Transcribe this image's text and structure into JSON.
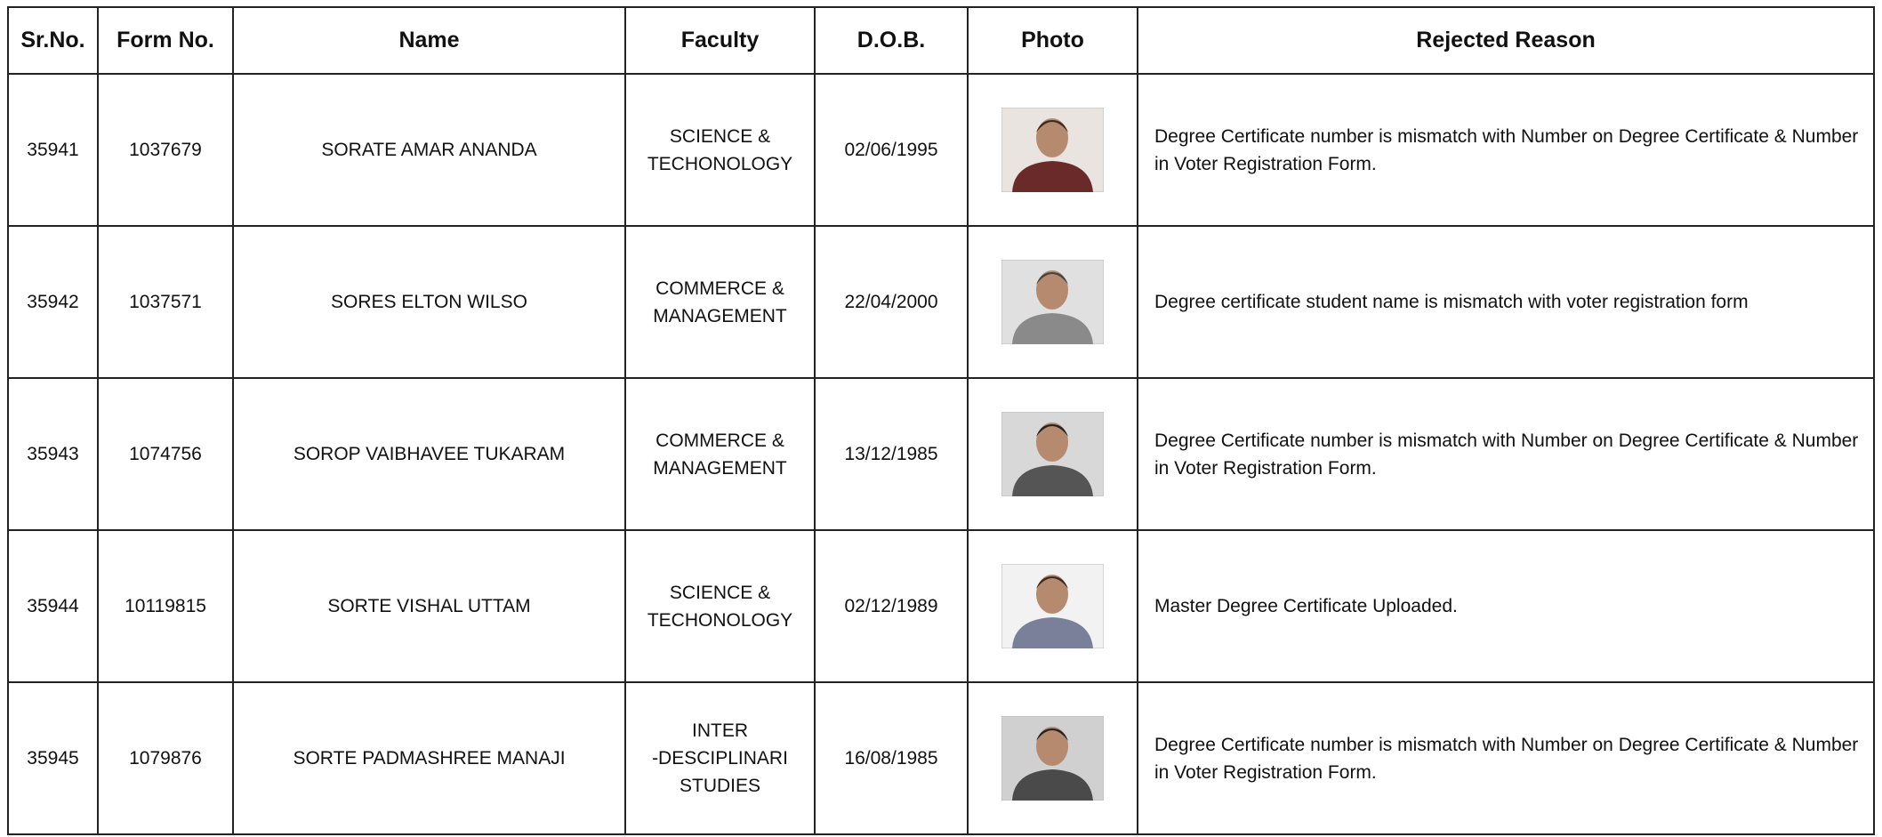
{
  "table": {
    "headers": [
      "Sr.No.",
      "Form No.",
      "Name",
      "Faculty",
      "D.O.B.",
      "Photo",
      "Rejected Reason"
    ],
    "rows": [
      [
        "35941",
        "1037679",
        "SORATE AMAR ANANDA",
        "SCIENCE &\nTECHONOLOGY",
        "02/06/1995",
        "Degree Certificate number is mismatch with Number on Degree Certificate & Number in Voter Registration Form."
      ],
      [
        "35942",
        "1037571",
        "SORES ELTON WILSO",
        "COMMERCE &\nMANAGEMENT",
        "22/04/2000",
        "Degree certificate student name is mismatch with voter registration form"
      ],
      [
        "35943",
        "1074756",
        "SOROP VAIBHAVEE TUKARAM",
        "COMMERCE &\nMANAGEMENT",
        "13/12/1985",
        "Degree Certificate number is mismatch with Number on Degree Certificate & Number in Voter Registration Form."
      ],
      [
        "35944",
        "10119815",
        "SORTE VISHAL UTTAM",
        "SCIENCE &\nTECHONOLOGY",
        "02/12/1989",
        "Master Degree Certificate Uploaded."
      ],
      [
        "35945",
        "1079876",
        "SORTE PADMASHREE MANAJI",
        "INTER\n-DESCIPLINARI\nSTUDIES",
        "16/08/1985",
        "Degree Certificate number is mismatch with Number on Degree Certificate & Number in Voter Registration Form."
      ]
    ]
  }
}
